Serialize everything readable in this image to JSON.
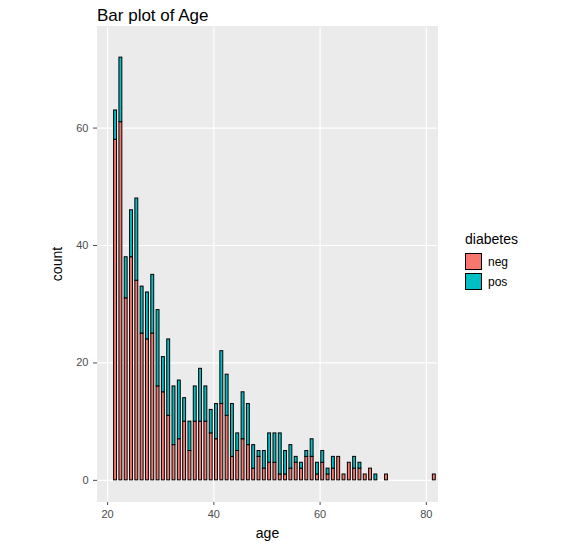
{
  "chart_data": {
    "type": "bar",
    "title": "Bar plot of Age",
    "x_label": "age",
    "y_label": "count",
    "legend_title": "diabetes",
    "stacked": true,
    "grid": true,
    "legend": "right",
    "x": [
      21,
      22,
      23,
      24,
      25,
      26,
      27,
      28,
      29,
      30,
      31,
      32,
      33,
      34,
      35,
      36,
      37,
      38,
      39,
      40,
      41,
      42,
      43,
      44,
      45,
      46,
      47,
      48,
      49,
      50,
      51,
      52,
      53,
      54,
      55,
      56,
      57,
      58,
      59,
      60,
      61,
      62,
      63,
      64,
      65,
      66,
      67,
      68,
      69,
      70,
      72,
      81
    ],
    "series": [
      {
        "name": "neg",
        "color": "#F8766D",
        "values": [
          58,
          61,
          31,
          38,
          34,
          25,
          24,
          25,
          16,
          15,
          11,
          6,
          7,
          10,
          5,
          10,
          10,
          10,
          8,
          7,
          13,
          11,
          4,
          5,
          7,
          6,
          2,
          4,
          2,
          3,
          3,
          1,
          1,
          2,
          3,
          2,
          4,
          4,
          1,
          3,
          1,
          2,
          4,
          1,
          3,
          2,
          2,
          1,
          2,
          0,
          1,
          1
        ]
      },
      {
        "name": "pos",
        "color": "#00BFC4",
        "values": [
          5,
          11,
          7,
          8,
          14,
          8,
          8,
          10,
          13,
          6,
          13,
          10,
          10,
          4,
          5,
          6,
          9,
          6,
          4,
          6,
          9,
          7,
          9,
          3,
          8,
          7,
          4,
          1,
          3,
          5,
          5,
          7,
          4,
          4,
          1,
          1,
          1,
          3,
          2,
          2,
          1,
          2,
          0,
          0,
          0,
          2,
          1,
          0,
          0,
          1,
          0,
          0
        ]
      }
    ],
    "xlim": [
      18.1,
      82.1
    ],
    "ylim": [
      -3.6,
      77.3
    ],
    "xticks": [
      20,
      40,
      60,
      80
    ],
    "yticks": [
      0,
      20,
      40,
      60
    ]
  }
}
